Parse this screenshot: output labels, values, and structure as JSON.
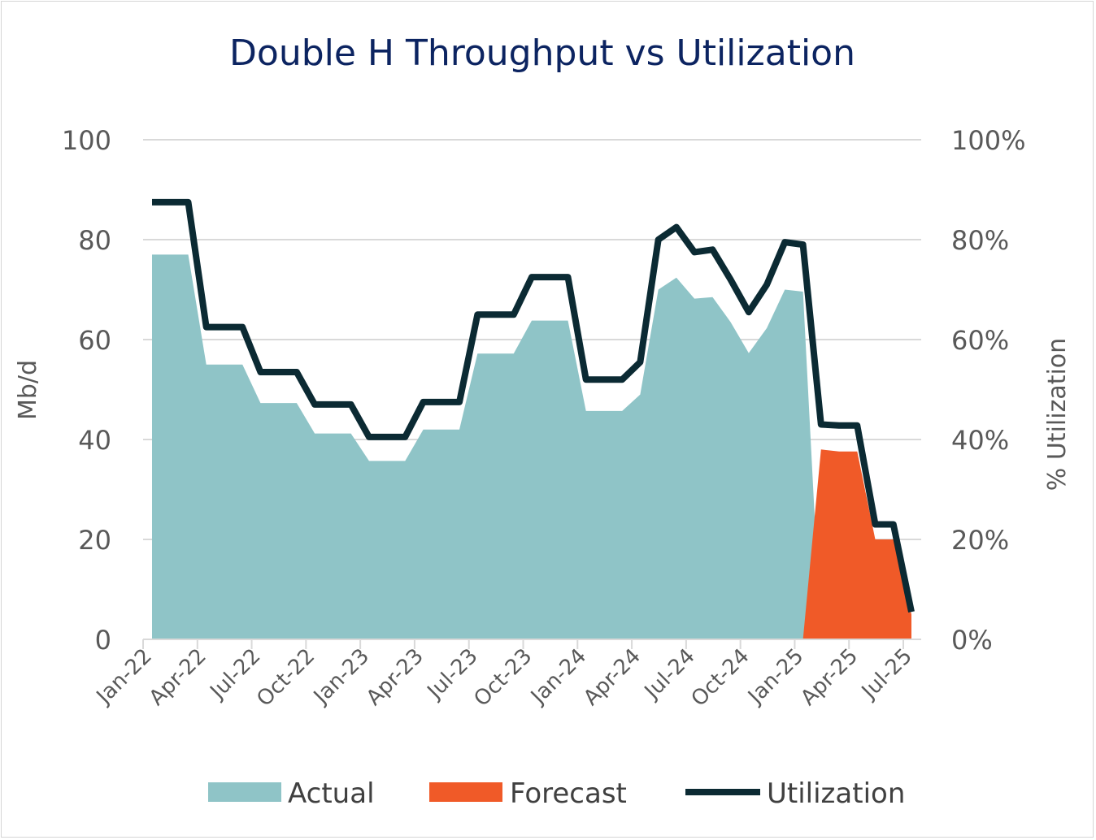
{
  "chart_data": {
    "type": "area",
    "title": "Double H Throughput vs Utilization",
    "ylabel": "Mb/d",
    "y2label": "% Utilization",
    "ylim": [
      0,
      100
    ],
    "y2lim": [
      0,
      1
    ],
    "yticks": [
      "0",
      "20",
      "40",
      "60",
      "80",
      "100"
    ],
    "y2ticks": [
      "0%",
      "20%",
      "40%",
      "60%",
      "80%",
      "100%"
    ],
    "xticks": [
      "Jan-22",
      "Apr-22",
      "Jul-22",
      "Oct-22",
      "Jan-23",
      "Apr-23",
      "Jul-23",
      "Oct-23",
      "Jan-24",
      "Apr-24",
      "Jul-24",
      "Oct-24",
      "Jan-25",
      "Apr-25",
      "Jul-25"
    ],
    "grid": true,
    "legend_position": "bottom",
    "x": [
      "Jan-22",
      "Feb-22",
      "Mar-22",
      "Apr-22",
      "May-22",
      "Jun-22",
      "Jul-22",
      "Aug-22",
      "Sep-22",
      "Oct-22",
      "Nov-22",
      "Dec-22",
      "Jan-23",
      "Feb-23",
      "Mar-23",
      "Apr-23",
      "May-23",
      "Jun-23",
      "Jul-23",
      "Aug-23",
      "Sep-23",
      "Oct-23",
      "Nov-23",
      "Dec-23",
      "Jan-24",
      "Feb-24",
      "Mar-24",
      "Apr-24",
      "May-24",
      "Jun-24",
      "Jul-24",
      "Aug-24",
      "Sep-24",
      "Oct-24",
      "Nov-24",
      "Dec-24",
      "Jan-25",
      "Feb-25",
      "Mar-25",
      "Apr-25",
      "May-25",
      "Jun-25",
      "Jul-25"
    ],
    "series": [
      {
        "name": "Actual",
        "type": "area",
        "color": "#8fc4c7",
        "values": [
          77,
          77,
          77,
          55,
          55,
          55,
          47.3,
          47.3,
          47.3,
          41.2,
          41.2,
          41.2,
          35.7,
          35.7,
          35.7,
          42,
          42,
          42,
          57.2,
          57.2,
          57.2,
          63.8,
          63.8,
          63.8,
          45.7,
          45.7,
          45.7,
          49,
          70,
          72.4,
          68.2,
          68.5,
          63.5,
          57.3,
          62.3,
          70,
          69.6,
          null,
          null,
          null,
          null,
          null,
          null
        ]
      },
      {
        "name": "Forecast",
        "type": "area",
        "color": "#f05a28",
        "values": [
          null,
          null,
          null,
          null,
          null,
          null,
          null,
          null,
          null,
          null,
          null,
          null,
          null,
          null,
          null,
          null,
          null,
          null,
          null,
          null,
          null,
          null,
          null,
          null,
          null,
          null,
          null,
          null,
          null,
          null,
          null,
          null,
          null,
          null,
          null,
          null,
          null,
          38,
          37.6,
          37.6,
          20,
          20,
          5
        ]
      },
      {
        "name": "Utilization",
        "type": "line",
        "axis": "right",
        "color": "#0b2a33",
        "values": [
          0.875,
          0.875,
          0.875,
          0.625,
          0.625,
          0.625,
          0.535,
          0.535,
          0.535,
          0.47,
          0.47,
          0.47,
          0.405,
          0.405,
          0.405,
          0.475,
          0.475,
          0.475,
          0.65,
          0.65,
          0.65,
          0.725,
          0.725,
          0.725,
          0.52,
          0.52,
          0.52,
          0.555,
          0.8,
          0.825,
          0.775,
          0.78,
          0.72,
          0.655,
          0.71,
          0.795,
          0.79,
          0.43,
          0.428,
          0.428,
          0.23,
          0.23,
          0.055
        ]
      }
    ]
  }
}
